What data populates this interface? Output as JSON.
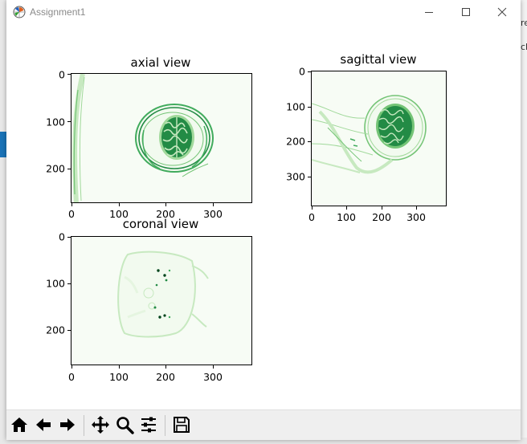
{
  "window": {
    "title": "Assignment1",
    "controls": [
      "minimize-icon",
      "maximize-icon",
      "close-icon"
    ]
  },
  "background_fragments": [
    "re",
    "ch"
  ],
  "plots": {
    "axial": {
      "title": "axial view",
      "x_ticks": [
        "0",
        "100",
        "200",
        "300"
      ],
      "y_ticks": [
        "0",
        "100",
        "200"
      ]
    },
    "sagittal": {
      "title": "sagittal view",
      "x_ticks": [
        "0",
        "100",
        "200",
        "300"
      ],
      "y_ticks": [
        "0",
        "100",
        "200",
        "300"
      ]
    },
    "coronal": {
      "title": "coronal view",
      "x_ticks": [
        "0",
        "100",
        "200",
        "300"
      ],
      "y_ticks": [
        "0",
        "100",
        "200"
      ]
    }
  },
  "chart_data": [
    {
      "type": "heatmap",
      "title": "axial view",
      "colormap": "Greens",
      "xlim": [
        0,
        384
      ],
      "ylim": [
        274,
        0
      ],
      "x_ticks": [
        0,
        100,
        200,
        300
      ],
      "y_ticks": [
        0,
        100,
        200
      ]
    },
    {
      "type": "heatmap",
      "title": "sagittal view",
      "colormap": "Greens",
      "xlim": [
        0,
        384
      ],
      "ylim": [
        384,
        0
      ],
      "x_ticks": [
        0,
        100,
        200,
        300
      ],
      "y_ticks": [
        0,
        100,
        200,
        300
      ]
    },
    {
      "type": "heatmap",
      "title": "coronal view",
      "colormap": "Greens",
      "xlim": [
        0,
        384
      ],
      "ylim": [
        274,
        0
      ],
      "x_ticks": [
        0,
        100,
        200,
        300
      ],
      "y_ticks": [
        0,
        100,
        200
      ]
    }
  ],
  "toolbar": {
    "buttons": [
      {
        "name": "home-icon"
      },
      {
        "name": "back-arrow-icon"
      },
      {
        "name": "forward-arrow-icon"
      },
      {
        "name": "pan-icon"
      },
      {
        "name": "zoom-icon"
      },
      {
        "name": "configure-subplots-icon"
      },
      {
        "name": "save-icon"
      }
    ]
  },
  "colors": {
    "image_background": "#f7fcf5",
    "tissue_light": "#a1d99b",
    "tissue_dark": "#006d2c"
  }
}
